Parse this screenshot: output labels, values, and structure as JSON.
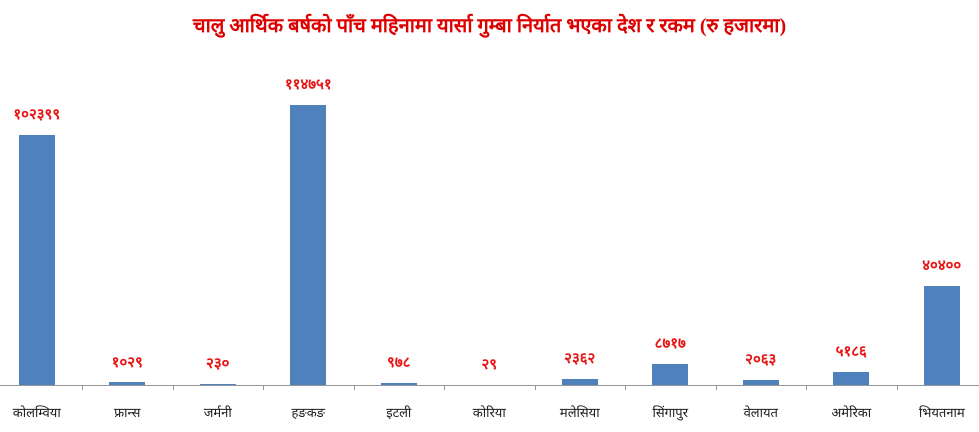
{
  "chart_data": {
    "type": "bar",
    "title": "चालु आर्थिक बर्षको पाँच महिनामा यार्सा गुम्बा निर्यात भएका देश र रकम (रु हजारमा)",
    "categories": [
      "कोलम्विया",
      "फ्रान्स",
      "जर्मनी",
      "हङकङ",
      "इटली",
      "कोरिया",
      "मलेसिया",
      "सिंगापुर",
      "वेलायत",
      "अमेरिका",
      "भियतनाम"
    ],
    "values": [
      102399,
      1029,
      230,
      114751,
      978,
      29,
      2362,
      8717,
      2063,
      5186,
      40400
    ],
    "value_labels": [
      "१०२३९९",
      "१०२९",
      "२३०",
      "११४७५१",
      "९७८",
      "२९",
      "२३६२",
      "८७१७",
      "२०६३",
      "५१८६",
      "४०४००"
    ],
    "xlabel": "",
    "ylabel": "",
    "ylim": [
      0,
      120000
    ],
    "grid": false,
    "legend": false,
    "colors": {
      "bar": "#4F81BD",
      "title": "#DE0000",
      "value_label": "#E81414",
      "category_label": "#1A1A1A",
      "axis": "#969696"
    }
  }
}
